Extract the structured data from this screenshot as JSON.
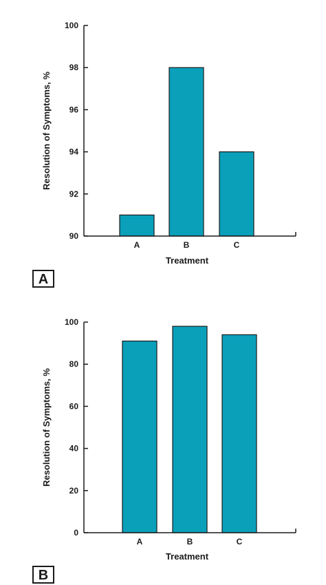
{
  "chart_data": [
    {
      "panel": "A",
      "type": "bar",
      "categories": [
        "A",
        "B",
        "C"
      ],
      "values": [
        91,
        98,
        94
      ],
      "xlabel": "Treatment",
      "ylabel": "Resolution of Symptoms, %",
      "ylim": [
        90,
        100
      ],
      "yticks": [
        90,
        92,
        94,
        96,
        98,
        100
      ],
      "colors": {
        "bar": "#0aa0ba",
        "axis": "#1a1a1a"
      }
    },
    {
      "panel": "B",
      "type": "bar",
      "categories": [
        "A",
        "B",
        "C"
      ],
      "values": [
        91,
        98,
        94
      ],
      "xlabel": "Treatment",
      "ylabel": "Resolution of Symptoms, %",
      "ylim": [
        0,
        100
      ],
      "yticks": [
        0,
        20,
        40,
        60,
        80,
        100
      ],
      "colors": {
        "bar": "#0aa0ba",
        "axis": "#1a1a1a"
      }
    }
  ]
}
